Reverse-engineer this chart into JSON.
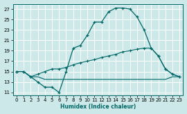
{
  "xlabel": "Humidex (Indice chaleur)",
  "background_color": "#cce8e8",
  "grid_color": "#b0d0d0",
  "line_color": "#006666",
  "xlim": [
    -0.5,
    23.5
  ],
  "ylim": [
    10.5,
    28.0
  ],
  "xticks": [
    0,
    1,
    2,
    3,
    4,
    5,
    6,
    7,
    8,
    9,
    10,
    11,
    12,
    13,
    14,
    15,
    16,
    17,
    18,
    19,
    20,
    21,
    22,
    23
  ],
  "yticks": [
    11,
    13,
    15,
    17,
    19,
    21,
    23,
    25,
    27
  ],
  "line1_x": [
    0,
    1,
    2,
    3,
    4,
    5,
    6,
    7,
    8,
    9,
    10,
    11,
    12,
    13,
    14,
    15,
    16,
    17,
    18,
    19,
    20,
    21,
    22,
    23
  ],
  "line1_y": [
    15.0,
    15.0,
    14.0,
    13.0,
    12.0,
    12.0,
    11.0,
    15.0,
    19.5,
    20.0,
    22.0,
    24.5,
    24.5,
    26.5,
    27.2,
    27.2,
    27.0,
    25.5,
    23.0,
    19.5,
    18.0,
    15.5,
    14.5,
    14.0
  ],
  "line2_x": [
    0,
    1,
    2,
    3,
    4,
    5,
    6,
    7,
    8,
    9,
    10,
    11,
    12,
    13,
    14,
    15,
    16,
    17,
    18,
    19,
    20,
    21,
    22,
    23
  ],
  "line2_y": [
    15.0,
    15.0,
    14.0,
    14.5,
    15.0,
    15.5,
    15.5,
    15.8,
    16.3,
    16.7,
    17.0,
    17.3,
    17.7,
    18.0,
    18.3,
    18.8,
    19.0,
    19.3,
    19.5,
    19.5,
    18.0,
    15.5,
    14.5,
    14.0
  ],
  "line3_x": [
    0,
    1,
    2,
    3,
    4,
    5,
    6,
    7,
    8,
    9,
    10,
    11,
    12,
    13,
    14,
    15,
    16,
    17,
    18,
    19,
    20,
    21,
    22,
    23
  ],
  "line3_y": [
    15.0,
    15.0,
    14.0,
    14.0,
    13.5,
    13.5,
    13.5,
    13.5,
    13.5,
    13.5,
    13.5,
    13.5,
    13.5,
    13.5,
    13.5,
    13.5,
    13.5,
    13.5,
    13.5,
    13.5,
    13.5,
    13.5,
    14.0,
    14.0
  ]
}
